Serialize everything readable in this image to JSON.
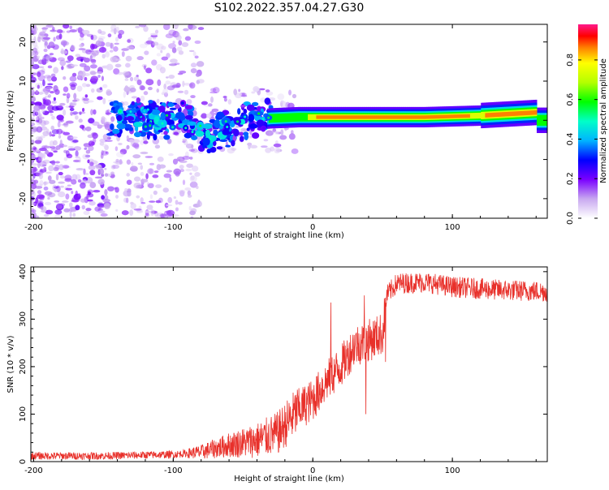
{
  "chart_data": [
    {
      "type": "heatmap",
      "title": "S102.2022.357.04.27.G30",
      "xlabel": "Height of straight line (km)",
      "ylabel": "Frequency (Hz)",
      "xlim": [
        -202,
        168
      ],
      "ylim": [
        -25,
        24.5
      ],
      "xticks": [
        -200,
        -100,
        0,
        100
      ],
      "yticks": [
        -20,
        -10,
        0,
        10,
        20
      ],
      "colorbar": {
        "label": "Normalized spectral amplitude",
        "range": [
          0.0,
          0.98
        ],
        "ticks": [
          0.0,
          0.2,
          0.4,
          0.6,
          0.8
        ]
      },
      "ridge": [
        {
          "x": -140,
          "y": 0.5,
          "amp": 0.3
        },
        {
          "x": -130,
          "y": 1.0,
          "amp": 0.35
        },
        {
          "x": -110,
          "y": 0.0,
          "amp": 0.3
        },
        {
          "x": -90,
          "y": 0.0,
          "amp": 0.35
        },
        {
          "x": -75,
          "y": -4.0,
          "amp": 0.35
        },
        {
          "x": -60,
          "y": -2.0,
          "amp": 0.4
        },
        {
          "x": -45,
          "y": 0.0,
          "amp": 0.4
        },
        {
          "x": -30,
          "y": 0.5,
          "amp": 0.6
        },
        {
          "x": -10,
          "y": 0.8,
          "amp": 0.6
        },
        {
          "x": 5,
          "y": 0.8,
          "amp": 0.9
        },
        {
          "x": 40,
          "y": 0.8,
          "amp": 0.9
        },
        {
          "x": 80,
          "y": 0.8,
          "amp": 0.9
        },
        {
          "x": 120,
          "y": 1.2,
          "amp": 0.85
        },
        {
          "x": 160,
          "y": 2.0,
          "amp": 0.95
        }
      ]
    },
    {
      "type": "line",
      "xlabel": "Height of straight line (km)",
      "ylabel": "SNR (10 * v/v)",
      "xlim": [
        -202,
        168
      ],
      "ylim": [
        0,
        410
      ],
      "xticks": [
        -200,
        -100,
        0,
        100
      ],
      "yticks": [
        0,
        100,
        200,
        300,
        400
      ],
      "color": "#e8302a",
      "trend": [
        {
          "x": -202,
          "y": 12
        },
        {
          "x": -150,
          "y": 12
        },
        {
          "x": -100,
          "y": 15
        },
        {
          "x": -80,
          "y": 20
        },
        {
          "x": -60,
          "y": 35
        },
        {
          "x": -40,
          "y": 45
        },
        {
          "x": -25,
          "y": 60
        },
        {
          "x": -10,
          "y": 110
        },
        {
          "x": 0,
          "y": 130
        },
        {
          "x": 10,
          "y": 170
        },
        {
          "x": 20,
          "y": 200
        },
        {
          "x": 30,
          "y": 245
        },
        {
          "x": 40,
          "y": 255
        },
        {
          "x": 50,
          "y": 270
        },
        {
          "x": 53,
          "y": 350
        },
        {
          "x": 60,
          "y": 375
        },
        {
          "x": 80,
          "y": 378
        },
        {
          "x": 100,
          "y": 368
        },
        {
          "x": 130,
          "y": 362
        },
        {
          "x": 168,
          "y": 358
        }
      ],
      "spikes": [
        {
          "x": 13,
          "y": 335
        },
        {
          "x": 37,
          "y": 350
        },
        {
          "x": 38,
          "y": 100
        },
        {
          "x": 52,
          "y": 210
        }
      ]
    }
  ]
}
